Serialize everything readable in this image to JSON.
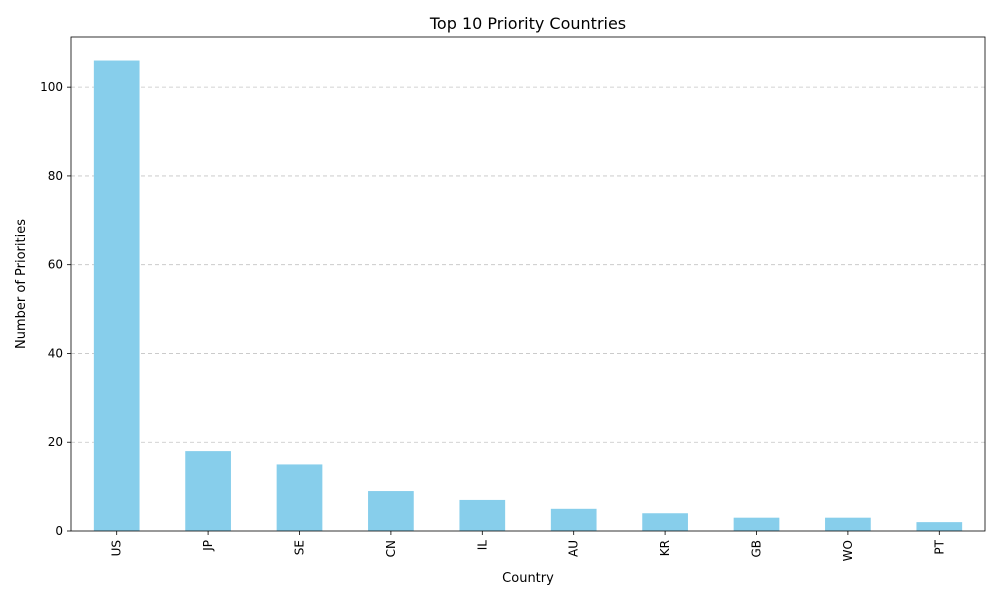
{
  "chart_data": {
    "type": "bar",
    "title": "Top 10 Priority Countries",
    "xlabel": "Country",
    "ylabel": "Number of Priorities",
    "categories": [
      "US",
      "JP",
      "SE",
      "CN",
      "IL",
      "AU",
      "KR",
      "GB",
      "WO",
      "PT"
    ],
    "values": [
      106,
      18,
      15,
      9,
      7,
      5,
      4,
      3,
      3,
      2
    ],
    "ylim": [
      0,
      111.3
    ],
    "yticks": [
      0,
      20,
      40,
      60,
      80,
      100
    ],
    "grid": "y-dashed",
    "legend": "none",
    "bar_color": "#87CEEB",
    "grid_color": "#c4c4c4"
  }
}
